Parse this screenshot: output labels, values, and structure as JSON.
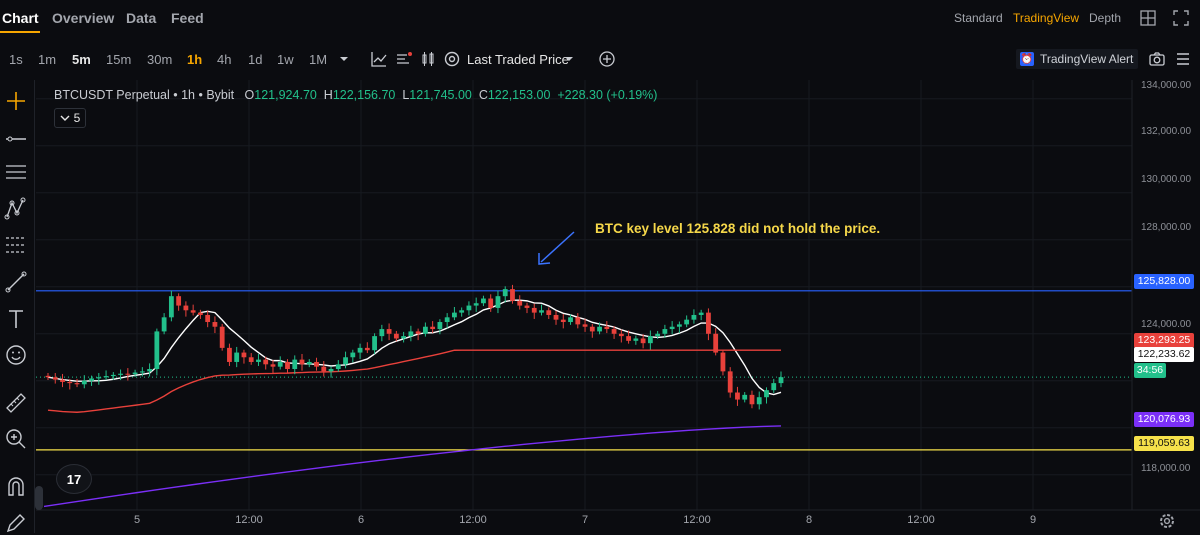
{
  "nav": {
    "tabs": [
      {
        "label": "Chart",
        "active": true
      },
      {
        "label": "Overview",
        "active": false
      },
      {
        "label": "Data",
        "active": false
      },
      {
        "label": "Feed",
        "active": false
      }
    ],
    "view_modes": [
      {
        "label": "Standard",
        "active": false
      },
      {
        "label": "TradingView",
        "active": true
      },
      {
        "label": "Depth",
        "active": false
      }
    ],
    "icons": [
      "grid-layout-icon",
      "fullscreen-icon"
    ]
  },
  "toolbar": {
    "timeframes": [
      "1s",
      "1m",
      "5m",
      "15m",
      "30m",
      "1h",
      "4h",
      "1d",
      "1w",
      "1M"
    ],
    "active_timeframe": "1h",
    "price_source": "Last Traded Price",
    "alert_label": "TradingView Alert",
    "icons": [
      "timeframe-dropdown-icon",
      "indicators-icon",
      "chart-settings-icon",
      "candle-type-icon",
      "price-source-icon",
      "add-icon",
      "screenshot-icon",
      "menu-icon"
    ]
  },
  "left_tools": [
    "crosshair-icon",
    "horizontal-line-icon",
    "parallel-lines-icon",
    "pattern-icon",
    "fib-icon",
    "brush-icon",
    "text-icon",
    "emoji-icon",
    "ruler-icon",
    "zoom-icon",
    "magnet-icon",
    "lock-pencil-icon"
  ],
  "legend": {
    "symbol": "BTCUSDT Perpetual • 1h • Bybit",
    "open_label": "O",
    "open": "121,924.70",
    "high_label": "H",
    "high": "122,156.70",
    "low_label": "L",
    "low": "121,745.00",
    "close_label": "C",
    "close": "122,153.00",
    "change": "+228.30 (+0.19%)",
    "indicator_count": "5"
  },
  "annotation": "BTC key level 125.828 did not hold the price.",
  "price_axis": {
    "ticks": [
      "134,000.00",
      "132,000.00",
      "130,000.00",
      "128,000.00",
      "124,000.00",
      "118,000.00"
    ],
    "tags": [
      {
        "label": "125,828.00",
        "color": "#2962ff",
        "text": "#ffffff"
      },
      {
        "label": "123,293.25",
        "color": "#e8413b",
        "text": "#ffffff"
      },
      {
        "label": "122,233.62",
        "color": "#ffffff",
        "text": "#111111"
      },
      {
        "label": "34:56",
        "color": "#22c08b",
        "text": "#ffffff"
      },
      {
        "label": "120,076.93",
        "color": "#7b2ff7",
        "text": "#ffffff"
      },
      {
        "label": "119,059.63",
        "color": "#f6e14a",
        "text": "#111111"
      }
    ]
  },
  "time_axis": [
    "5",
    "12:00",
    "6",
    "12:00",
    "7",
    "12:00",
    "8",
    "12:00",
    "9"
  ],
  "chart_data": {
    "type": "candlestick",
    "symbol": "BTCUSDT Perpetual",
    "interval": "1h",
    "y_range": [
      116500,
      134800
    ],
    "horizontal_levels": [
      {
        "value": 125828,
        "color": "#2962ff"
      },
      {
        "value": 119059.63,
        "color": "#f6e14a"
      }
    ],
    "ma_colors": {
      "fast": "#ffffff",
      "mid": "#e8413b",
      "slow": "#7b2ff7"
    },
    "up_color": "#22c08b",
    "down_color": "#e8413b"
  },
  "tv_logo": "17"
}
